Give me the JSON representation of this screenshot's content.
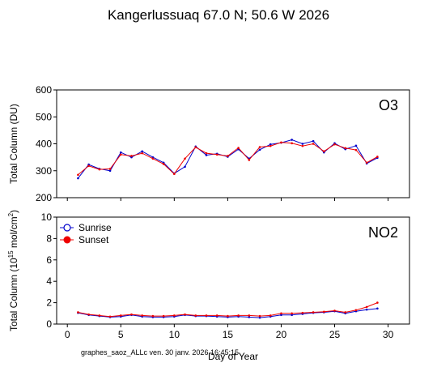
{
  "figure": {
    "title": "Kangerlussuaq  67.0 N; 50.6 W   2026",
    "footer": "graphes_saoz_ALLc  ven. 30 janv. 2026 16:45:15",
    "colors": {
      "sunrise": "#0000cc",
      "sunset": "#ee0000",
      "axes": "#000000"
    }
  },
  "chart_data": [
    {
      "type": "line",
      "panel_label": "O3",
      "xlabel": "",
      "ylabel": "Total Column  (DU)",
      "xlim": [
        -1,
        32
      ],
      "ylim": [
        200,
        600
      ],
      "xticks": [
        0,
        5,
        10,
        15,
        20,
        25,
        30
      ],
      "yticks": [
        200,
        300,
        400,
        500,
        600
      ],
      "series": [
        {
          "name": "Sunrise",
          "color": "#0000cc",
          "x": [
            1,
            2,
            3,
            4,
            5,
            6,
            7,
            8,
            9,
            10,
            11,
            12,
            13,
            14,
            15,
            16,
            17,
            18,
            19,
            20,
            21,
            22,
            23,
            24,
            25,
            26,
            27,
            28,
            29
          ],
          "y": [
            272,
            323,
            307,
            300,
            368,
            350,
            372,
            350,
            330,
            290,
            315,
            390,
            358,
            363,
            352,
            380,
            345,
            378,
            398,
            404,
            415,
            400,
            410,
            368,
            402,
            380,
            393,
            327,
            348
          ]
        },
        {
          "name": "Sunset",
          "color": "#ee0000",
          "x": [
            1,
            2,
            3,
            4,
            5,
            6,
            7,
            8,
            9,
            10,
            11,
            12,
            13,
            14,
            15,
            16,
            17,
            18,
            19,
            20,
            21,
            22,
            23,
            24,
            25,
            26,
            27,
            28,
            29
          ],
          "y": [
            285,
            318,
            305,
            307,
            360,
            355,
            365,
            345,
            325,
            288,
            345,
            387,
            365,
            360,
            355,
            385,
            340,
            388,
            392,
            405,
            402,
            392,
            400,
            372,
            398,
            384,
            377,
            330,
            352
          ]
        }
      ]
    },
    {
      "type": "line",
      "panel_label": "NO2",
      "xlabel": "Day of Year",
      "ylabel_main": "Total Column (10",
      "ylabel_sup1": "15",
      "ylabel_mid": " mol/cm",
      "ylabel_sup2": "2",
      "ylabel_end": ")",
      "legend": {
        "placement": "top-left",
        "entries": [
          "Sunrise",
          "Sunset"
        ]
      },
      "xlim": [
        -1,
        32
      ],
      "ylim": [
        0,
        10
      ],
      "xticks": [
        0,
        5,
        10,
        15,
        20,
        25,
        30
      ],
      "yticks": [
        0,
        2,
        4,
        6,
        8,
        10
      ],
      "series": [
        {
          "name": "Sunrise",
          "color": "#0000cc",
          "x": [
            1,
            2,
            3,
            4,
            5,
            6,
            7,
            8,
            9,
            10,
            11,
            12,
            13,
            14,
            15,
            16,
            17,
            18,
            19,
            20,
            21,
            22,
            23,
            24,
            25,
            26,
            27,
            28,
            29
          ],
          "y": [
            1.05,
            0.85,
            0.75,
            0.65,
            0.7,
            0.85,
            0.7,
            0.65,
            0.65,
            0.7,
            0.85,
            0.75,
            0.75,
            0.7,
            0.65,
            0.7,
            0.65,
            0.6,
            0.7,
            0.85,
            0.85,
            0.95,
            1.05,
            1.1,
            1.2,
            1.0,
            1.2,
            1.35,
            1.45
          ]
        },
        {
          "name": "Sunset",
          "color": "#ee0000",
          "x": [
            1,
            2,
            3,
            4,
            5,
            6,
            7,
            8,
            9,
            10,
            11,
            12,
            13,
            14,
            15,
            16,
            17,
            18,
            19,
            20,
            21,
            22,
            23,
            24,
            25,
            26,
            27,
            28,
            29
          ],
          "y": [
            1.1,
            0.9,
            0.8,
            0.7,
            0.8,
            0.9,
            0.8,
            0.75,
            0.75,
            0.8,
            0.9,
            0.8,
            0.8,
            0.8,
            0.75,
            0.8,
            0.8,
            0.75,
            0.8,
            1.0,
            1.0,
            1.05,
            1.1,
            1.15,
            1.25,
            1.1,
            1.3,
            1.6,
            2.0
          ]
        }
      ]
    }
  ]
}
